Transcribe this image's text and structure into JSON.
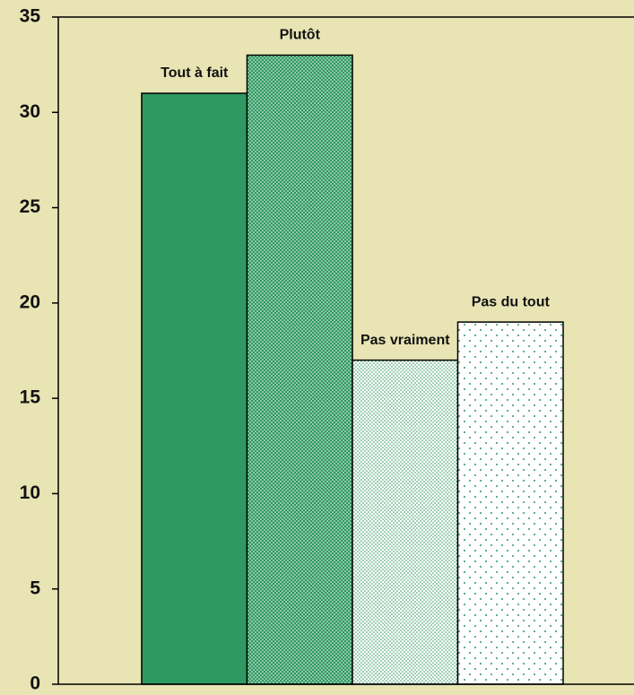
{
  "chart_data": {
    "type": "bar",
    "categories": [
      "Tout à fait",
      "Plutôt",
      "Pas vraiment",
      "Pas du tout"
    ],
    "values": [
      31,
      33,
      17,
      19
    ],
    "color": "#2e9960",
    "patterns": [
      "solid",
      "dense",
      "medium",
      "sparse"
    ],
    "ylim": [
      0,
      35
    ],
    "yticks": [
      0,
      5,
      10,
      15,
      20,
      25,
      30,
      35
    ],
    "grid": false
  }
}
